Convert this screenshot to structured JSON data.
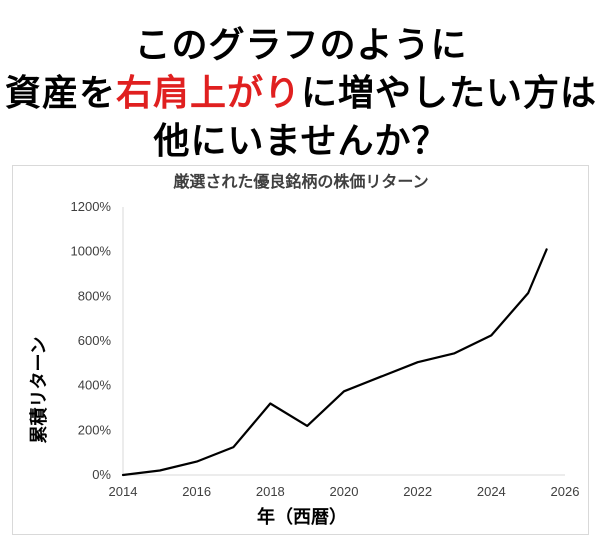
{
  "headline": {
    "line1": "このグラフのように",
    "line2_prefix": "資産を",
    "line2_accent": "右肩上がり",
    "line2_suffix": "に増やしたい方は",
    "line3": "他にいませんか？",
    "accent_color": "#e02020"
  },
  "chart_data": {
    "type": "line",
    "title": "厳選された優良銘柄の株価リターン",
    "xlabel": "年（西暦）",
    "ylabel": "累積リターン",
    "xlim": [
      2014,
      2026
    ],
    "ylim": [
      0,
      1200
    ],
    "x_ticks": [
      "2014",
      "2016",
      "2018",
      "2020",
      "2022",
      "2024",
      "2026"
    ],
    "y_ticks": [
      "0%",
      "200%",
      "400%",
      "600%",
      "800%",
      "1000%",
      "1200%"
    ],
    "grid": false,
    "legend": "none",
    "line_color": "#000000",
    "series": [
      {
        "x": [
          2014,
          2015,
          2016,
          2017,
          2018,
          2019,
          2020,
          2021,
          2022,
          2023,
          2024,
          2025,
          2025.5
        ],
        "values": [
          0,
          20,
          60,
          125,
          320,
          220,
          375,
          440,
          505,
          545,
          625,
          815,
          1010
        ]
      }
    ]
  }
}
